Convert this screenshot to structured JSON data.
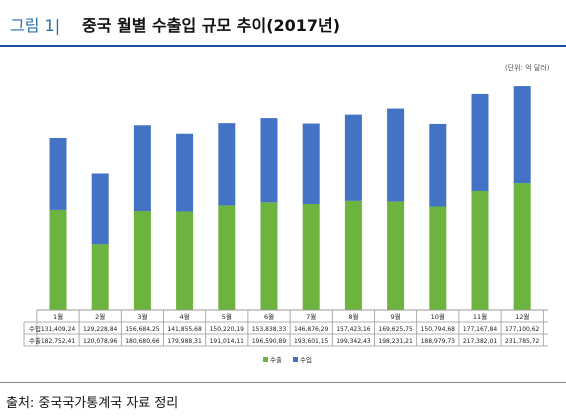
{
  "header": {
    "label": "그림 1|",
    "title": "중국 월별 수출입 규모 추이(2017년)"
  },
  "unit": "(단위: 억 달러)",
  "source": "출처: 중국국가통계국 자료 정리",
  "colors": {
    "export": "#6db33f",
    "import": "#4472c4",
    "title_accent": "#2b6cb0",
    "rule": "#1f4e9c"
  },
  "chart_data": {
    "type": "bar",
    "stacked": true,
    "categories": [
      "1월",
      "2월",
      "3월",
      "4월",
      "5월",
      "6월",
      "7월",
      "8월",
      "9월",
      "10월",
      "11월",
      "12월"
    ],
    "series": [
      {
        "name": "수출",
        "values": [
          182752.41,
          120078.96,
          180680.66,
          179988.31,
          191014.11,
          196590.89,
          193601.15,
          199342.43,
          198231.21,
          188979.73,
          217382.01,
          231785.72
        ],
        "labels": [
          "182,752,41",
          "120,078,96",
          "180,680,66",
          "179,988,31",
          "191,014,11",
          "196,590,89",
          "193,601,15",
          "199,342,43",
          "198,231,21",
          "188,979,73",
          "217,382,01",
          "231,785,72"
        ]
      },
      {
        "name": "수입",
        "values": [
          131409.24,
          129228.84,
          156684.25,
          141855.68,
          150220.19,
          153838.33,
          146876.29,
          157423.16,
          169625.75,
          150794.68,
          177167.84,
          177100.62
        ],
        "labels": [
          "131,409,24",
          "129,228,84",
          "156,684,25",
          "141,855,68",
          "150,220,19",
          "153,838,33",
          "146,876,29",
          "157,423,16",
          "169,625,75",
          "150,794,68",
          "177,167,84",
          "177,100,62"
        ]
      }
    ],
    "table_rows": [
      "수입",
      "수출"
    ],
    "legend": [
      "수출",
      "수입"
    ],
    "legend_position": "bottom",
    "ylim": [
      0,
      420000
    ],
    "grid": false
  }
}
